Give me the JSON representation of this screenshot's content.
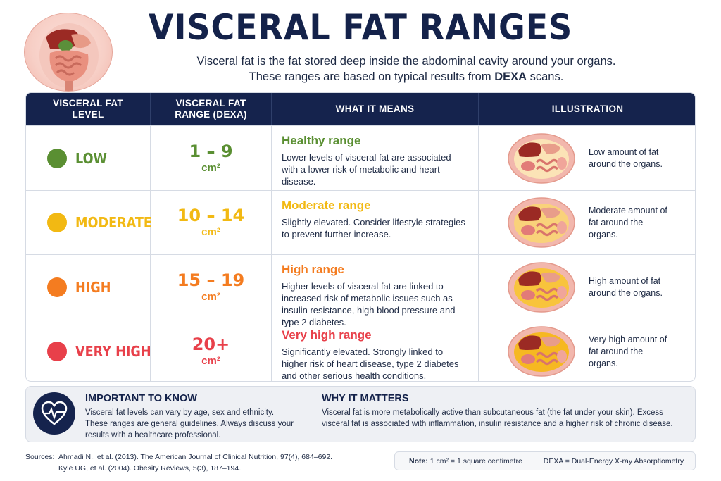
{
  "header": {
    "title": "VISCERAL FAT RANGES",
    "subtitle_line1": "Visceral fat is the fat stored deep inside the abdominal cavity around your organs.",
    "subtitle_line2_pre": "These ranges are based on typical results from ",
    "subtitle_line2_bold": "DEXA",
    "subtitle_line2_post": " scans."
  },
  "table": {
    "columns": [
      "VISCERAL FAT LEVEL",
      "VISCERAL FAT RANGE (DEXA)",
      "WHAT IT MEANS",
      "ILLUSTRATION"
    ],
    "rows": [
      {
        "level": "LOW",
        "color": "#5a8f32",
        "range": "1 – 9",
        "unit": "cm²",
        "meaning_title": "Healthy range",
        "meaning_text": "Lower levels of visceral fat are associated with a lower risk of metabolic and heart disease.",
        "illustration_text": "Low amount of fat around the organs.",
        "fat_color": "#fbe3b6"
      },
      {
        "level": "MODERATE",
        "color": "#f2b913",
        "range": "10 – 14",
        "unit": "cm²",
        "meaning_title": "Moderate range",
        "meaning_text": "Slightly elevated. Consider lifestyle strategies to prevent further increase.",
        "illustration_text": "Moderate amount of fat around the organs.",
        "fat_color": "#f9d27a"
      },
      {
        "level": "HIGH",
        "color": "#f47c20",
        "range": "15 – 19",
        "unit": "cm²",
        "meaning_title": "High range",
        "meaning_text": "Higher levels of visceral fat are linked to increased risk of metabolic issues such as insulin resistance, high blood pressure and type 2 diabetes.",
        "illustration_text": "High amount of fat around the organs.",
        "fat_color": "#f8c43c"
      },
      {
        "level": "VERY HIGH",
        "color": "#e8404a",
        "range": "20+",
        "unit": "cm²",
        "meaning_title": "Very high range",
        "meaning_text": "Significantly elevated. Strongly linked to higher risk of heart disease, type 2 diabetes and other serious health conditions.",
        "illustration_text": "Very high amount of fat around the organs.",
        "fat_color": "#f6b821"
      }
    ]
  },
  "info": {
    "icon": "heart-monitor-icon",
    "important_title": "IMPORTANT TO KNOW",
    "important_text": "Visceral fat levels can vary by age, sex and ethnicity. These ranges are general guidelines. Always discuss your results with a healthcare professional.",
    "why_title": "WHY IT MATTERS",
    "why_text": "Visceral fat is more metabolically active than subcutaneous fat (the fat under your skin). Excess visceral fat is associated with inflammation, insulin resistance and a higher risk of chronic disease."
  },
  "footer": {
    "sources_label": "Sources:",
    "source1": "Ahmadi N., et al. (2013). The American Journal of Clinical Nutrition, 97(4), 684–692.",
    "source2": "Kyle UG, et al. (2004). Obesity Reviews, 5(3), 187–194.",
    "note_label": "Note:",
    "note_text": "1 cm² = 1 square centimetre",
    "dexa_text": "DEXA = Dual-Energy X-ray Absorptiometry"
  }
}
